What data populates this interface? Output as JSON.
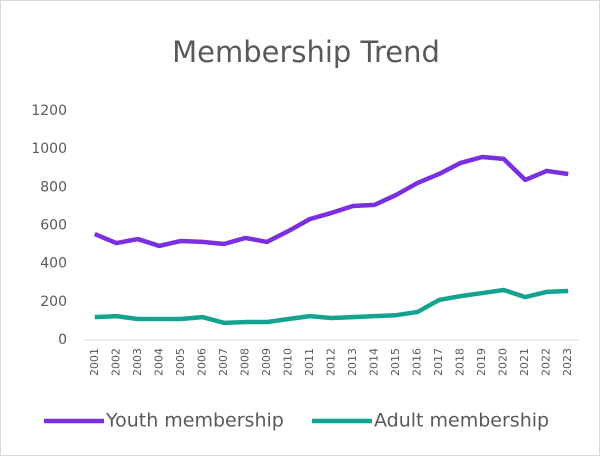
{
  "chart_data": {
    "type": "line",
    "title": "Membership Trend",
    "categories": [
      "2001",
      "2002",
      "2003",
      "2004",
      "2005",
      "2006",
      "2007",
      "2008",
      "2009",
      "2010",
      "2011",
      "2012",
      "2013",
      "2014",
      "2015",
      "2016",
      "2017",
      "2018",
      "2019",
      "2020",
      "2021",
      "2022",
      "2023"
    ],
    "series": [
      {
        "name": "Youth membership",
        "color": "#7a2fe0",
        "values": [
          555,
          508,
          529,
          493,
          519,
          514,
          503,
          535,
          514,
          571,
          634,
          666,
          702,
          708,
          760,
          823,
          870,
          928,
          959,
          949,
          839,
          886,
          870
        ]
      },
      {
        "name": "Adult membership",
        "color": "#14a391",
        "values": [
          120,
          125,
          110,
          110,
          110,
          120,
          90,
          94,
          94,
          110,
          125,
          115,
          120,
          125,
          130,
          147,
          210,
          230,
          246,
          262,
          225,
          252,
          257
        ]
      }
    ],
    "ylim": [
      0,
      1200
    ],
    "yticks": [
      0,
      200,
      400,
      600,
      800,
      1000,
      1200
    ],
    "grid": false,
    "legend": "bottom"
  }
}
